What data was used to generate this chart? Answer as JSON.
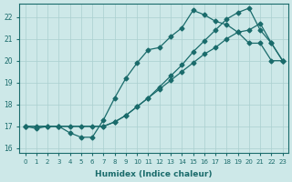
{
  "xlabel": "Humidex (Indice chaleur)",
  "xlim": [
    -0.5,
    23.5
  ],
  "ylim": [
    15.8,
    22.6
  ],
  "yticks": [
    16,
    17,
    18,
    19,
    20,
    21,
    22
  ],
  "xticks": [
    0,
    1,
    2,
    3,
    4,
    5,
    6,
    7,
    8,
    9,
    10,
    11,
    12,
    13,
    14,
    15,
    16,
    17,
    18,
    19,
    20,
    21,
    22,
    23
  ],
  "bg_color": "#cde8e8",
  "grid_color": "#aacfcf",
  "line_color": "#1a6b6b",
  "line1_x": [
    0,
    1,
    2,
    3,
    4,
    5,
    6,
    7,
    8,
    9,
    10,
    11,
    12,
    13,
    14,
    15,
    16,
    17,
    18,
    19,
    20,
    21,
    22,
    23
  ],
  "line1_y": [
    17.0,
    16.9,
    17.0,
    17.0,
    16.7,
    16.5,
    16.5,
    17.3,
    18.3,
    19.2,
    19.9,
    20.5,
    20.6,
    21.1,
    21.5,
    22.3,
    22.1,
    21.8,
    21.65,
    21.3,
    20.8,
    20.8,
    20.0,
    20.0
  ],
  "line2_x": [
    0,
    3,
    7,
    8,
    9,
    10,
    11,
    12,
    13,
    14,
    15,
    16,
    17,
    18,
    19,
    20,
    21,
    22,
    23
  ],
  "line2_y": [
    17.0,
    17.0,
    17.0,
    17.2,
    17.5,
    17.9,
    18.3,
    18.7,
    19.1,
    19.5,
    19.9,
    20.3,
    20.6,
    21.0,
    21.3,
    21.4,
    21.7,
    20.8,
    20.0
  ],
  "line3_x": [
    0,
    1,
    2,
    3,
    4,
    5,
    6,
    7,
    8,
    9,
    10,
    11,
    12,
    13,
    14,
    15,
    16,
    17,
    18,
    19,
    20,
    21,
    22,
    23
  ],
  "line3_y": [
    17.0,
    17.0,
    17.0,
    17.0,
    17.0,
    17.0,
    17.0,
    17.0,
    17.2,
    17.5,
    17.9,
    18.3,
    18.8,
    19.3,
    19.8,
    20.4,
    20.9,
    21.4,
    21.9,
    22.2,
    22.4,
    21.4,
    20.8,
    20.0
  ]
}
